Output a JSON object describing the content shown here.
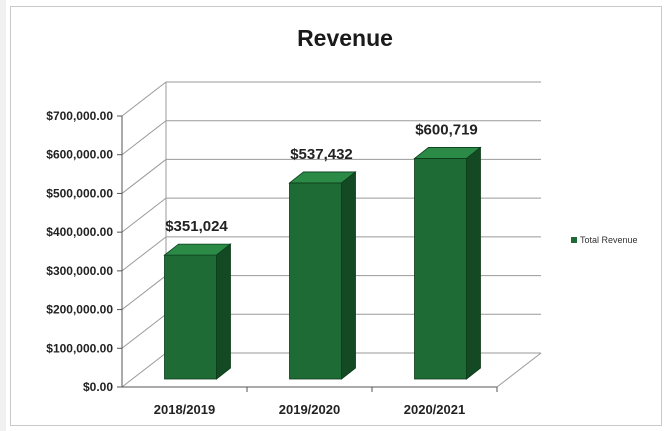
{
  "chart_data": {
    "type": "bar",
    "title": "Revenue",
    "categories": [
      "2018/2019",
      "2019/2020",
      "2020/2021"
    ],
    "series": [
      {
        "name": "Total Revenue",
        "values": [
          351024,
          537432,
          600719
        ],
        "color": "#1e6b35"
      }
    ],
    "data_labels": [
      "$351,024",
      "$537,432",
      "$600,719"
    ],
    "y_ticks": [
      "$0.00",
      "$100,000.00",
      "$200,000.00",
      "$300,000.00",
      "$400,000.00",
      "$500,000.00",
      "$600,000.00",
      "$700,000.00"
    ],
    "ylim": [
      0,
      700000
    ],
    "grid": true,
    "legend_position": "right",
    "style": "3d-column"
  }
}
